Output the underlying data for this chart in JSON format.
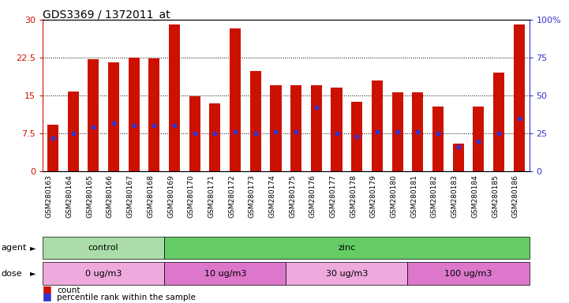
{
  "title": "GDS3369 / 1372011_at",
  "samples": [
    "GSM280163",
    "GSM280164",
    "GSM280165",
    "GSM280166",
    "GSM280167",
    "GSM280168",
    "GSM280169",
    "GSM280170",
    "GSM280171",
    "GSM280172",
    "GSM280173",
    "GSM280174",
    "GSM280175",
    "GSM280176",
    "GSM280177",
    "GSM280178",
    "GSM280179",
    "GSM280180",
    "GSM280181",
    "GSM280182",
    "GSM280183",
    "GSM280184",
    "GSM280185",
    "GSM280186"
  ],
  "count": [
    9.2,
    15.8,
    22.2,
    21.5,
    22.5,
    22.4,
    29.0,
    14.8,
    13.5,
    28.2,
    19.8,
    17.0,
    17.0,
    17.0,
    16.5,
    13.8,
    18.0,
    15.6,
    15.6,
    12.8,
    5.5,
    12.8,
    19.5,
    29.0
  ],
  "percentile": [
    22,
    25,
    29,
    32,
    30,
    30,
    30,
    25,
    25,
    26,
    25,
    26,
    26,
    42,
    25,
    23,
    26,
    26,
    26,
    25,
    16,
    20,
    25,
    35
  ],
  "bar_color": "#cc1100",
  "percentile_color": "#3333cc",
  "ylim_left": [
    0,
    30
  ],
  "ylim_right": [
    0,
    100
  ],
  "yticks_left": [
    0,
    7.5,
    15,
    22.5,
    30
  ],
  "yticks_right": [
    0,
    25,
    50,
    75,
    100
  ],
  "ytick_labels_left": [
    "0",
    "7.5",
    "15",
    "22.5",
    "30"
  ],
  "ytick_labels_right": [
    "0",
    "25",
    "50",
    "75",
    "100%"
  ],
  "left_axis_color": "#cc1100",
  "right_axis_color": "#3333cc",
  "agent_groups": [
    {
      "label": "control",
      "start": 0,
      "end": 6,
      "color": "#aaddaa"
    },
    {
      "label": "zinc",
      "start": 6,
      "end": 24,
      "color": "#66cc66"
    }
  ],
  "dose_groups": [
    {
      "label": "0 ug/m3",
      "start": 0,
      "end": 6,
      "color": "#eeaadd"
    },
    {
      "label": "10 ug/m3",
      "start": 6,
      "end": 12,
      "color": "#dd77cc"
    },
    {
      "label": "30 ug/m3",
      "start": 12,
      "end": 18,
      "color": "#eeaadd"
    },
    {
      "label": "100 ug/m3",
      "start": 18,
      "end": 24,
      "color": "#dd77cc"
    }
  ],
  "legend_items": [
    {
      "label": "count",
      "color": "#cc1100"
    },
    {
      "label": "percentile rank within the sample",
      "color": "#3333cc"
    }
  ]
}
